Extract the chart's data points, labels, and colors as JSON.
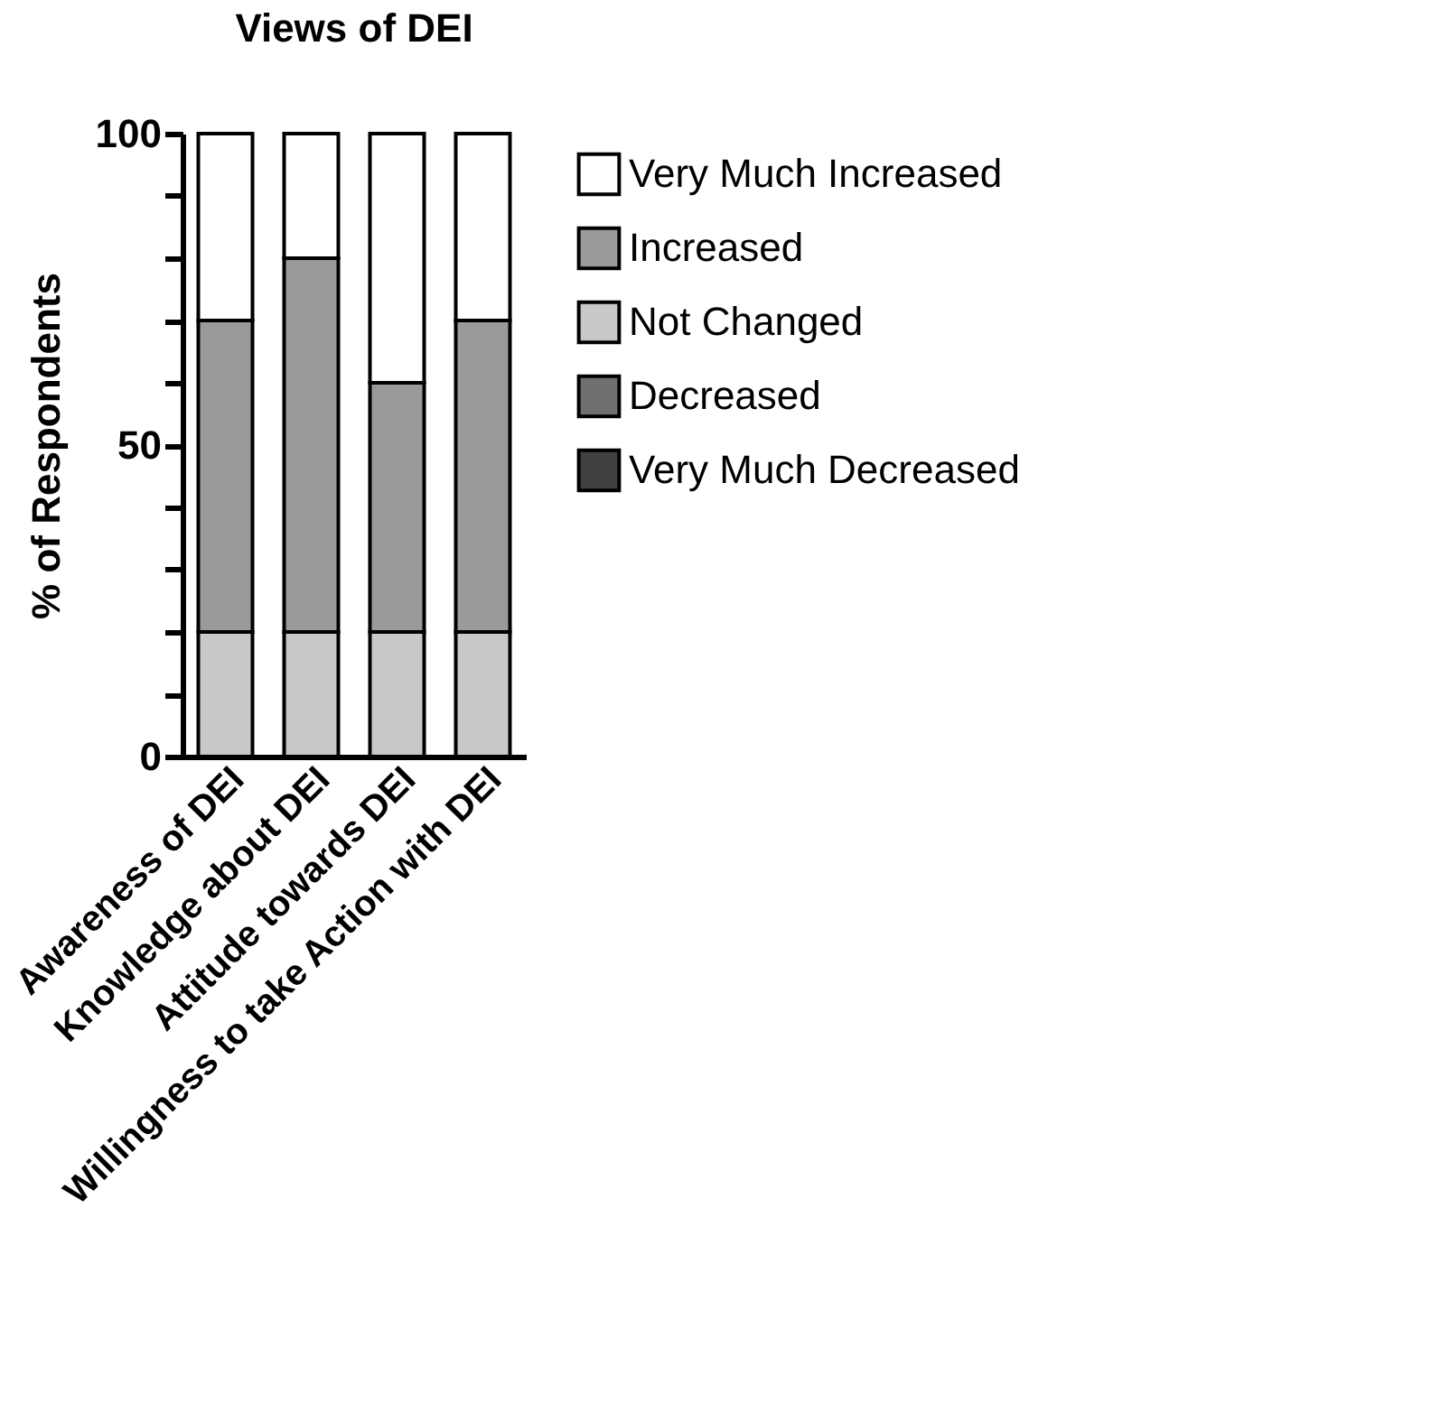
{
  "chart_data": {
    "type": "bar",
    "title": "Views of DEI",
    "ylabel": "% of Respondents",
    "stacked": true,
    "categories": [
      "Awareness of DEI",
      "Knowledge about DEI",
      "Attitude towards DEI",
      "Willingness to take Action with DEI"
    ],
    "series": [
      {
        "name": "Very Much Decreased",
        "color": "#404040",
        "values": [
          0,
          0,
          0,
          0
        ]
      },
      {
        "name": "Decreased",
        "color": "#707070",
        "values": [
          0,
          0,
          0,
          0
        ]
      },
      {
        "name": "Not Changed",
        "color": "#c8c8c8",
        "values": [
          20,
          20,
          20,
          20
        ]
      },
      {
        "name": "Increased",
        "color": "#9a9a9a",
        "values": [
          50,
          60,
          40,
          50
        ]
      },
      {
        "name": "Very Much Increased",
        "color": "#ffffff",
        "values": [
          30,
          20,
          40,
          30
        ]
      }
    ],
    "ylim": [
      0,
      100
    ],
    "yticks": [
      0,
      {
        "value": 10,
        "label": null
      },
      {
        "value": 20,
        "label": null
      },
      {
        "value": 30,
        "label": null
      },
      {
        "value": 40,
        "label": null
      },
      50,
      {
        "value": 60,
        "label": null
      },
      {
        "value": 70,
        "label": null
      },
      {
        "value": 80,
        "label": null
      },
      {
        "value": 90,
        "label": null
      },
      100
    ],
    "grid": false,
    "legend": "top right"
  }
}
